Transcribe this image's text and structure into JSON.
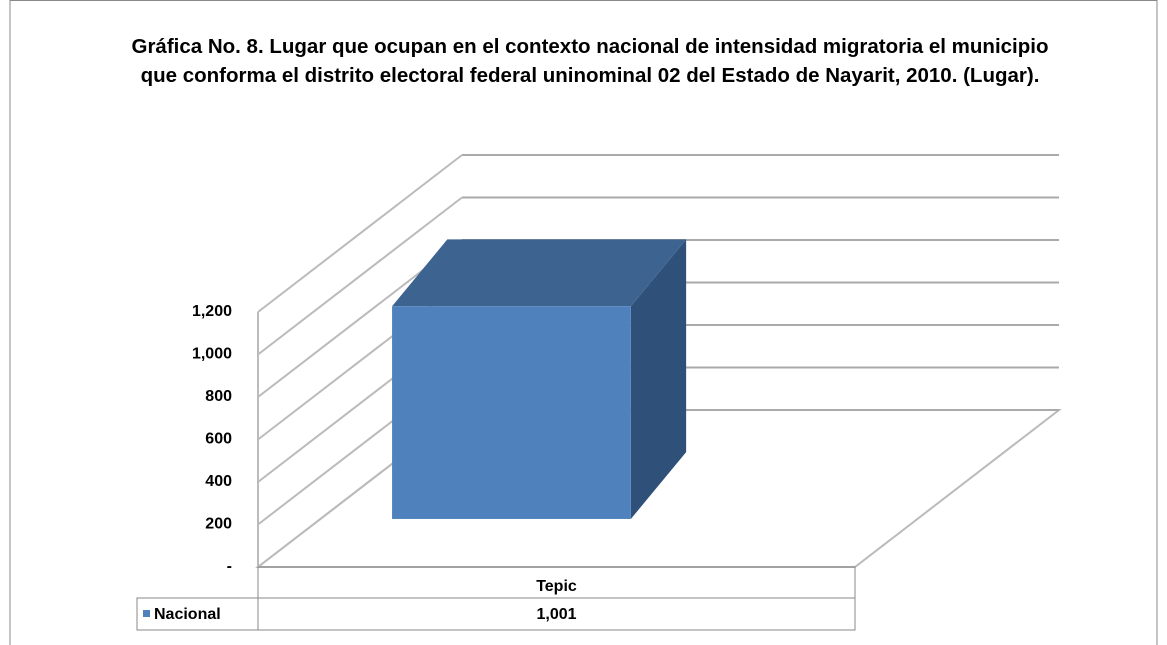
{
  "chart_data": {
    "type": "bar3d",
    "title": "Gráfica No. 8. Lugar que ocupan en el contexto nacional de intensidad migratoria el municipio que conforma el distrito electoral federal uninominal 02 del Estado de Nayarit, 2010. (Lugar).",
    "categories": [
      "Tepic"
    ],
    "series": [
      {
        "name": "Nacional",
        "color": "#4f81bd",
        "values": [
          1001
        ],
        "value_labels": [
          "1,001"
        ]
      }
    ],
    "ylim": [
      0,
      1200
    ],
    "yticks": [
      {
        "value": 0,
        "label": "-"
      },
      200,
      400,
      600,
      800,
      {
        "value": 1000,
        "label": "1,000"
      },
      {
        "value": 1200,
        "label": "1,200"
      }
    ],
    "grid": true,
    "data_table": true
  }
}
